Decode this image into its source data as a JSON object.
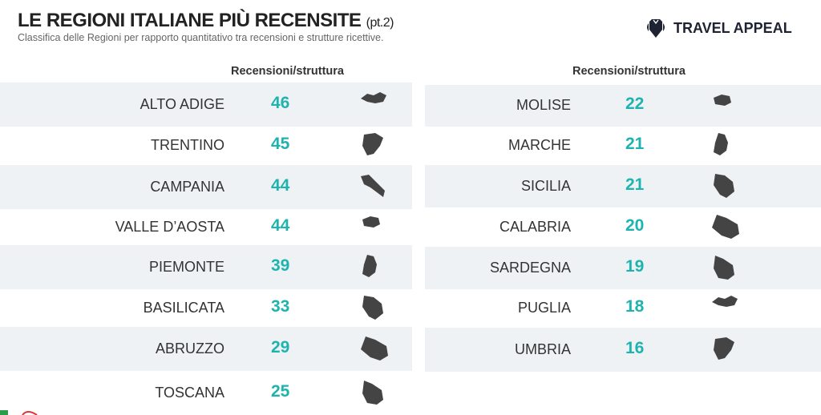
{
  "header": {
    "title": "LE REGIONI ITALIANE PIÙ RECENSITE",
    "title_suffix": "(pt.2)",
    "subtitle": "Classifica delle Regioni per rapporto quantitativo tra recensioni e strutture ricettive."
  },
  "logo": {
    "text": "TRAVEL APPEAL",
    "icon": "shield-pin-icon"
  },
  "colors": {
    "accent": "#1fb3b0",
    "shade": "#eff2f5",
    "map": "#444444"
  },
  "left": {
    "column_header": "Recensioni/struttura",
    "rows": [
      {
        "region": "ALTO ADIGE",
        "value": 46
      },
      {
        "region": "TRENTINO",
        "value": 45
      },
      {
        "region": "CAMPANIA",
        "value": 44
      },
      {
        "region": "VALLE D’AOSTA",
        "value": 44
      },
      {
        "region": "PIEMONTE",
        "value": 39
      },
      {
        "region": "BASILICATA",
        "value": 33
      },
      {
        "region": "ABRUZZO",
        "value": 29
      },
      {
        "region": "TOSCANA",
        "value": 25
      }
    ]
  },
  "right": {
    "column_header": "Recensioni/struttura",
    "rows": [
      {
        "region": "MOLISE",
        "value": 22
      },
      {
        "region": "MARCHE",
        "value": 21
      },
      {
        "region": "SICILIA",
        "value": 21
      },
      {
        "region": "CALABRIA",
        "value": 20
      },
      {
        "region": "SARDEGNA",
        "value": 19
      },
      {
        "region": "PUGLIA",
        "value": 18
      },
      {
        "region": "UMBRIA",
        "value": 16
      }
    ]
  }
}
